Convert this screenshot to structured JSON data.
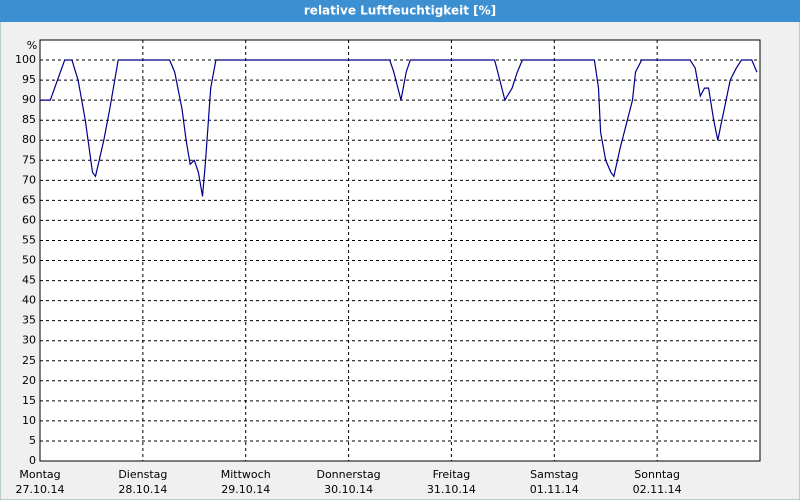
{
  "chart_data": {
    "type": "line",
    "title": "relative Luftfeuchtigkeit [%]",
    "y_unit": "%",
    "x": [
      0,
      0.1,
      0.17,
      0.24,
      0.31,
      0.37,
      0.44,
      0.51,
      0.54,
      0.62,
      0.68,
      0.76,
      1.26,
      1.31,
      1.38,
      1.42,
      1.46,
      1.5,
      1.54,
      1.58,
      1.61,
      1.66,
      1.71,
      3.4,
      3.44,
      3.51,
      3.56,
      3.6,
      4.42,
      4.47,
      4.52,
      4.59,
      4.64,
      4.69,
      5.39,
      5.43,
      5.45,
      5.5,
      5.55,
      5.58,
      5.64,
      5.7,
      5.76,
      5.79,
      5.85,
      6.32,
      6.37,
      6.42,
      6.46,
      6.5,
      6.55,
      6.59,
      6.63,
      6.67,
      6.71,
      6.77,
      6.82,
      6.92,
      6.97
    ],
    "series": [
      {
        "name": "relative Luftfeuchtigkeit",
        "color": "#00008b",
        "values": [
          90,
          90,
          95,
          100,
          100,
          95,
          85,
          72,
          71,
          80,
          88,
          100,
          100,
          97,
          88,
          80,
          74,
          75,
          72,
          66,
          75,
          93,
          100,
          100,
          97,
          90,
          97,
          100,
          100,
          95,
          90,
          93,
          97,
          100,
          100,
          93,
          82,
          75,
          72,
          71,
          78,
          84,
          90,
          97,
          100,
          100,
          98,
          91,
          93,
          93,
          85,
          80,
          85,
          90,
          95,
          98,
          100,
          100,
          97
        ]
      }
    ],
    "xlim": [
      0,
      7
    ],
    "xticks": [
      {
        "value": 0,
        "label": "Montag",
        "date": "27.10.14"
      },
      {
        "value": 1,
        "label": "Dienstag",
        "date": "28.10.14"
      },
      {
        "value": 2,
        "label": "Mittwoch",
        "date": "29.10.14"
      },
      {
        "value": 3,
        "label": "Donnerstag",
        "date": "30.10.14"
      },
      {
        "value": 4,
        "label": "Freitag",
        "date": "31.10.14"
      },
      {
        "value": 5,
        "label": "Samstag",
        "date": "01.11.14"
      },
      {
        "value": 6,
        "label": "Sonntag",
        "date": "02.11.14"
      }
    ],
    "ylim": [
      0,
      105
    ],
    "yticks": [
      0,
      5,
      10,
      15,
      20,
      25,
      30,
      35,
      40,
      45,
      50,
      55,
      60,
      65,
      70,
      75,
      80,
      85,
      90,
      95,
      100
    ],
    "grid": true
  }
}
